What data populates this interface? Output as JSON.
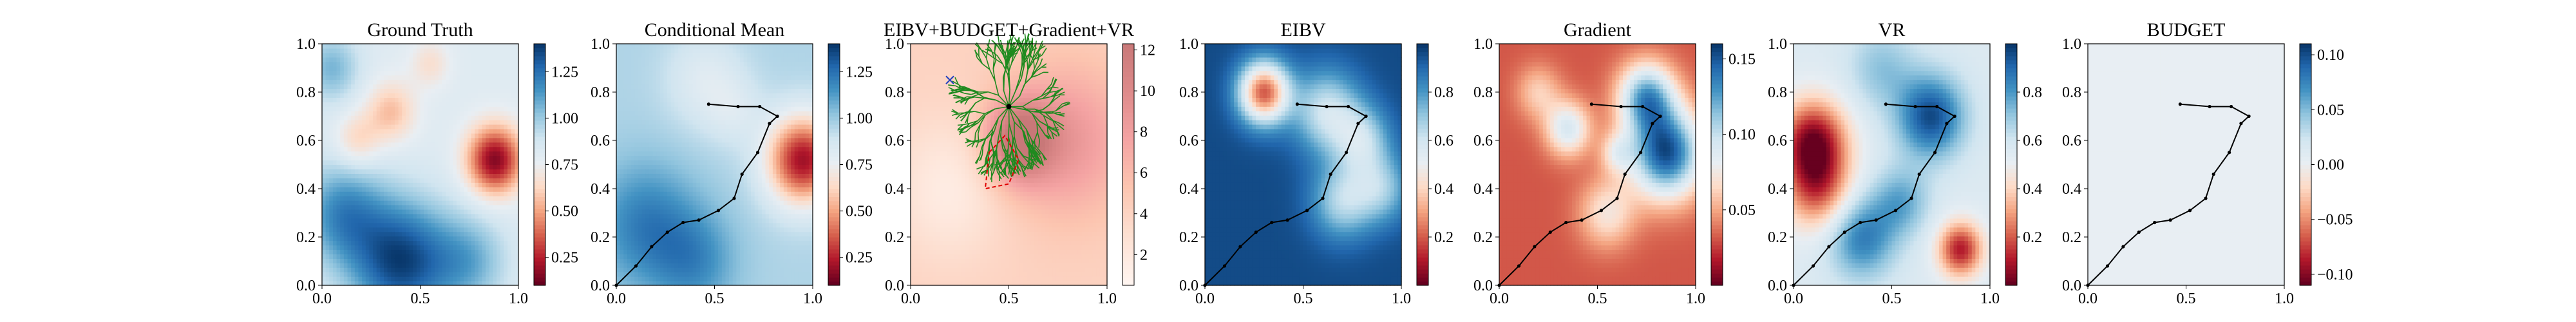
{
  "chart_data": [
    {
      "type": "heatmap",
      "title": "Ground Truth",
      "xlim": [
        0.0,
        1.0
      ],
      "ylim": [
        0.0,
        1.0
      ],
      "x_ticks": [
        "0.0",
        "0.5",
        "1.0"
      ],
      "y_ticks": [
        "0.0",
        "0.2",
        "0.4",
        "0.6",
        "0.8",
        "1.0"
      ],
      "colorbar_ticks": [
        "0.25",
        "0.50",
        "0.75",
        "1.00",
        "1.25"
      ],
      "colorbar_range": [
        0.1,
        1.4
      ],
      "cmap": "RdBu",
      "field": {
        "base": 0.8,
        "blobs": [
          {
            "x": 0.88,
            "y": 0.52,
            "amp": -0.65,
            "s": 0.1
          },
          {
            "x": 0.35,
            "y": 0.72,
            "amp": -0.25,
            "s": 0.09
          },
          {
            "x": 0.18,
            "y": 0.6,
            "amp": -0.2,
            "s": 0.08
          },
          {
            "x": 0.55,
            "y": 0.92,
            "amp": -0.15,
            "s": 0.07
          },
          {
            "x": 0.4,
            "y": 0.1,
            "amp": 0.55,
            "s": 0.18
          },
          {
            "x": 0.1,
            "y": 0.3,
            "amp": 0.35,
            "s": 0.15
          },
          {
            "x": 0.75,
            "y": 0.1,
            "amp": 0.25,
            "s": 0.14
          },
          {
            "x": 0.05,
            "y": 0.9,
            "amp": 0.25,
            "s": 0.1
          }
        ]
      }
    },
    {
      "type": "heatmap",
      "title": "Conditional Mean",
      "xlim": [
        0.0,
        1.0
      ],
      "ylim": [
        0.0,
        1.0
      ],
      "x_ticks": [
        "0.0",
        "0.5",
        "1.0"
      ],
      "y_ticks": [
        "0.0",
        "0.2",
        "0.4",
        "0.6",
        "0.8",
        "1.0"
      ],
      "colorbar_ticks": [
        "0.25",
        "0.50",
        "0.75",
        "1.00",
        "1.25"
      ],
      "colorbar_range": [
        0.1,
        1.4
      ],
      "cmap": "RdBu",
      "field": {
        "base": 0.95,
        "blobs": [
          {
            "x": 0.95,
            "y": 0.52,
            "amp": -0.75,
            "s": 0.13
          },
          {
            "x": 0.6,
            "y": 0.72,
            "amp": -0.1,
            "s": 0.1
          },
          {
            "x": 0.45,
            "y": 0.85,
            "amp": -0.15,
            "s": 0.14
          },
          {
            "x": 0.15,
            "y": 0.25,
            "amp": 0.25,
            "s": 0.18
          },
          {
            "x": 0.4,
            "y": 0.1,
            "amp": 0.2,
            "s": 0.15
          }
        ]
      },
      "path": [
        [
          0.0,
          0.0
        ],
        [
          0.1,
          0.08
        ],
        [
          0.18,
          0.16
        ],
        [
          0.26,
          0.22
        ],
        [
          0.34,
          0.26
        ],
        [
          0.42,
          0.27
        ],
        [
          0.52,
          0.31
        ],
        [
          0.6,
          0.36
        ],
        [
          0.64,
          0.46
        ],
        [
          0.72,
          0.55
        ],
        [
          0.78,
          0.67
        ],
        [
          0.82,
          0.7
        ],
        [
          0.73,
          0.74
        ],
        [
          0.62,
          0.74
        ],
        [
          0.47,
          0.75
        ]
      ]
    },
    {
      "type": "heatmap",
      "title": "EIBV+BUDGET+Gradient+VR",
      "xlim": [
        0.0,
        1.0
      ],
      "ylim": [
        0.0,
        1.0
      ],
      "x_ticks": [
        "0.0",
        "0.5",
        "1.0"
      ],
      "y_ticks": [
        "0.0",
        "0.2",
        "0.4",
        "0.6",
        "0.8",
        "1.0"
      ],
      "colorbar_ticks": [
        "2",
        "4",
        "6",
        "8",
        "10",
        "12"
      ],
      "colorbar_range": [
        0.5,
        12.3
      ],
      "cmap": "Reds_light",
      "field": {
        "base": 4.0,
        "blobs": [
          {
            "x": 0.55,
            "y": 0.6,
            "amp": 8.0,
            "s": 0.12
          },
          {
            "x": 0.8,
            "y": 0.6,
            "amp": 4.5,
            "s": 0.22
          },
          {
            "x": 0.2,
            "y": 0.4,
            "amp": -2.5,
            "s": 0.2
          }
        ]
      },
      "tree_root": [
        0.5,
        0.74
      ],
      "marker_x": [
        0.2,
        0.85
      ],
      "polygon": [
        [
          0.4,
          0.55
        ],
        [
          0.48,
          0.62
        ],
        [
          0.55,
          0.52
        ],
        [
          0.5,
          0.42
        ],
        [
          0.38,
          0.4
        ]
      ]
    },
    {
      "type": "heatmap",
      "title": "EIBV",
      "xlim": [
        0.0,
        1.0
      ],
      "ylim": [
        0.0,
        1.0
      ],
      "x_ticks": [
        "0.0",
        "0.5",
        "1.0"
      ],
      "y_ticks": [
        "0.0",
        "0.2",
        "0.4",
        "0.6",
        "0.8",
        "1.0"
      ],
      "colorbar_ticks": [
        "0.2",
        "0.4",
        "0.6",
        "0.8"
      ],
      "colorbar_range": [
        0.0,
        1.0
      ],
      "cmap": "RdBu",
      "field": {
        "base": 0.95,
        "blobs": [
          {
            "x": 0.3,
            "y": 0.8,
            "amp": -0.75,
            "s": 0.09
          },
          {
            "x": 0.62,
            "y": 0.72,
            "amp": -0.35,
            "s": 0.12
          },
          {
            "x": 0.8,
            "y": 0.6,
            "amp": -0.3,
            "s": 0.1
          },
          {
            "x": 0.7,
            "y": 0.35,
            "amp": -0.3,
            "s": 0.11
          },
          {
            "x": 0.9,
            "y": 0.4,
            "amp": -0.25,
            "s": 0.1
          }
        ]
      },
      "path": [
        [
          0.0,
          0.0
        ],
        [
          0.1,
          0.08
        ],
        [
          0.18,
          0.16
        ],
        [
          0.26,
          0.22
        ],
        [
          0.34,
          0.26
        ],
        [
          0.42,
          0.27
        ],
        [
          0.52,
          0.31
        ],
        [
          0.6,
          0.36
        ],
        [
          0.64,
          0.46
        ],
        [
          0.72,
          0.55
        ],
        [
          0.78,
          0.67
        ],
        [
          0.82,
          0.7
        ],
        [
          0.73,
          0.74
        ],
        [
          0.62,
          0.74
        ],
        [
          0.47,
          0.75
        ]
      ]
    },
    {
      "type": "heatmap",
      "title": "Gradient",
      "xlim": [
        0.0,
        1.0
      ],
      "ylim": [
        0.0,
        1.0
      ],
      "x_ticks": [
        "0.0",
        "0.5",
        "1.0"
      ],
      "y_ticks": [
        "0.0",
        "0.2",
        "0.4",
        "0.6",
        "0.8",
        "1.0"
      ],
      "colorbar_ticks": [
        "0.05",
        "0.10",
        "0.15"
      ],
      "colorbar_range": [
        0.0,
        0.16
      ],
      "cmap": "RdBu",
      "field": {
        "base": 0.03,
        "blobs": [
          {
            "x": 0.85,
            "y": 0.55,
            "amp": 0.12,
            "s": 0.13
          },
          {
            "x": 0.75,
            "y": 0.78,
            "amp": 0.09,
            "s": 0.1
          },
          {
            "x": 0.35,
            "y": 0.65,
            "amp": 0.06,
            "s": 0.08
          },
          {
            "x": 0.55,
            "y": 0.3,
            "amp": 0.04,
            "s": 0.1
          },
          {
            "x": 0.2,
            "y": 0.8,
            "amp": 0.03,
            "s": 0.08
          },
          {
            "x": 0.6,
            "y": 0.55,
            "amp": 0.035,
            "s": 0.06
          }
        ]
      },
      "path": [
        [
          0.0,
          0.0
        ],
        [
          0.1,
          0.08
        ],
        [
          0.18,
          0.16
        ],
        [
          0.26,
          0.22
        ],
        [
          0.34,
          0.26
        ],
        [
          0.42,
          0.27
        ],
        [
          0.52,
          0.31
        ],
        [
          0.6,
          0.36
        ],
        [
          0.64,
          0.46
        ],
        [
          0.72,
          0.55
        ],
        [
          0.78,
          0.67
        ],
        [
          0.82,
          0.7
        ],
        [
          0.73,
          0.74
        ],
        [
          0.62,
          0.74
        ],
        [
          0.47,
          0.75
        ]
      ]
    },
    {
      "type": "heatmap",
      "title": "VR",
      "xlim": [
        0.0,
        1.0
      ],
      "ylim": [
        0.0,
        1.0
      ],
      "x_ticks": [
        "0.0",
        "0.5",
        "1.0"
      ],
      "y_ticks": [
        "0.0",
        "0.2",
        "0.4",
        "0.6",
        "0.8",
        "1.0"
      ],
      "colorbar_ticks": [
        "0.2",
        "0.4",
        "0.6",
        "0.8"
      ],
      "colorbar_range": [
        0.0,
        1.0
      ],
      "cmap": "RdBu",
      "field": {
        "base": 0.55,
        "blobs": [
          {
            "x": 0.1,
            "y": 0.6,
            "amp": -0.5,
            "s": 0.12
          },
          {
            "x": 0.12,
            "y": 0.4,
            "amp": -0.35,
            "s": 0.12
          },
          {
            "x": 0.85,
            "y": 0.15,
            "amp": -0.45,
            "s": 0.08
          },
          {
            "x": 0.7,
            "y": 0.7,
            "amp": 0.4,
            "s": 0.12
          },
          {
            "x": 0.35,
            "y": 0.2,
            "amp": 0.3,
            "s": 0.12
          },
          {
            "x": 0.55,
            "y": 0.35,
            "amp": 0.2,
            "s": 0.1
          },
          {
            "x": 0.45,
            "y": 0.9,
            "amp": 0.15,
            "s": 0.12
          }
        ]
      },
      "path": [
        [
          0.0,
          0.0
        ],
        [
          0.1,
          0.08
        ],
        [
          0.18,
          0.16
        ],
        [
          0.26,
          0.22
        ],
        [
          0.34,
          0.26
        ],
        [
          0.42,
          0.27
        ],
        [
          0.52,
          0.31
        ],
        [
          0.6,
          0.36
        ],
        [
          0.64,
          0.46
        ],
        [
          0.72,
          0.55
        ],
        [
          0.78,
          0.67
        ],
        [
          0.82,
          0.7
        ],
        [
          0.73,
          0.74
        ],
        [
          0.62,
          0.74
        ],
        [
          0.47,
          0.75
        ]
      ]
    },
    {
      "type": "heatmap",
      "title": "BUDGET",
      "xlim": [
        0.0,
        1.0
      ],
      "ylim": [
        0.0,
        1.0
      ],
      "x_ticks": [
        "0.0",
        "0.5",
        "1.0"
      ],
      "y_ticks": [
        "0.0",
        "0.2",
        "0.4",
        "0.6",
        "0.8",
        "1.0"
      ],
      "colorbar_ticks": [
        "−0.10",
        "−0.05",
        "0.00",
        "0.05",
        "0.10"
      ],
      "colorbar_range": [
        -0.11,
        0.11
      ],
      "cmap": "RdBu",
      "field": {
        "base": 0.0,
        "blobs": []
      },
      "path": [
        [
          0.0,
          0.0
        ],
        [
          0.1,
          0.08
        ],
        [
          0.18,
          0.16
        ],
        [
          0.26,
          0.22
        ],
        [
          0.34,
          0.26
        ],
        [
          0.42,
          0.27
        ],
        [
          0.52,
          0.31
        ],
        [
          0.6,
          0.36
        ],
        [
          0.64,
          0.46
        ],
        [
          0.72,
          0.55
        ],
        [
          0.78,
          0.67
        ],
        [
          0.82,
          0.7
        ],
        [
          0.73,
          0.74
        ],
        [
          0.62,
          0.74
        ],
        [
          0.47,
          0.75
        ]
      ]
    }
  ],
  "colors": {
    "rdbu": [
      "#67001f",
      "#b2182b",
      "#d6604d",
      "#f4a582",
      "#fddbc7",
      "#e8eef3",
      "#d1e5f0",
      "#92c5de",
      "#4393c3",
      "#2166ac",
      "#053061"
    ],
    "reds_light": [
      "#fff5f0",
      "#fde0d2",
      "#fcc5b0",
      "#f4a3a3",
      "#dd8a8a",
      "#c87878"
    ],
    "path": "#000000",
    "tree": "#1f8a1f",
    "marker": "#1f3fbf",
    "polygon": "#e00000"
  }
}
